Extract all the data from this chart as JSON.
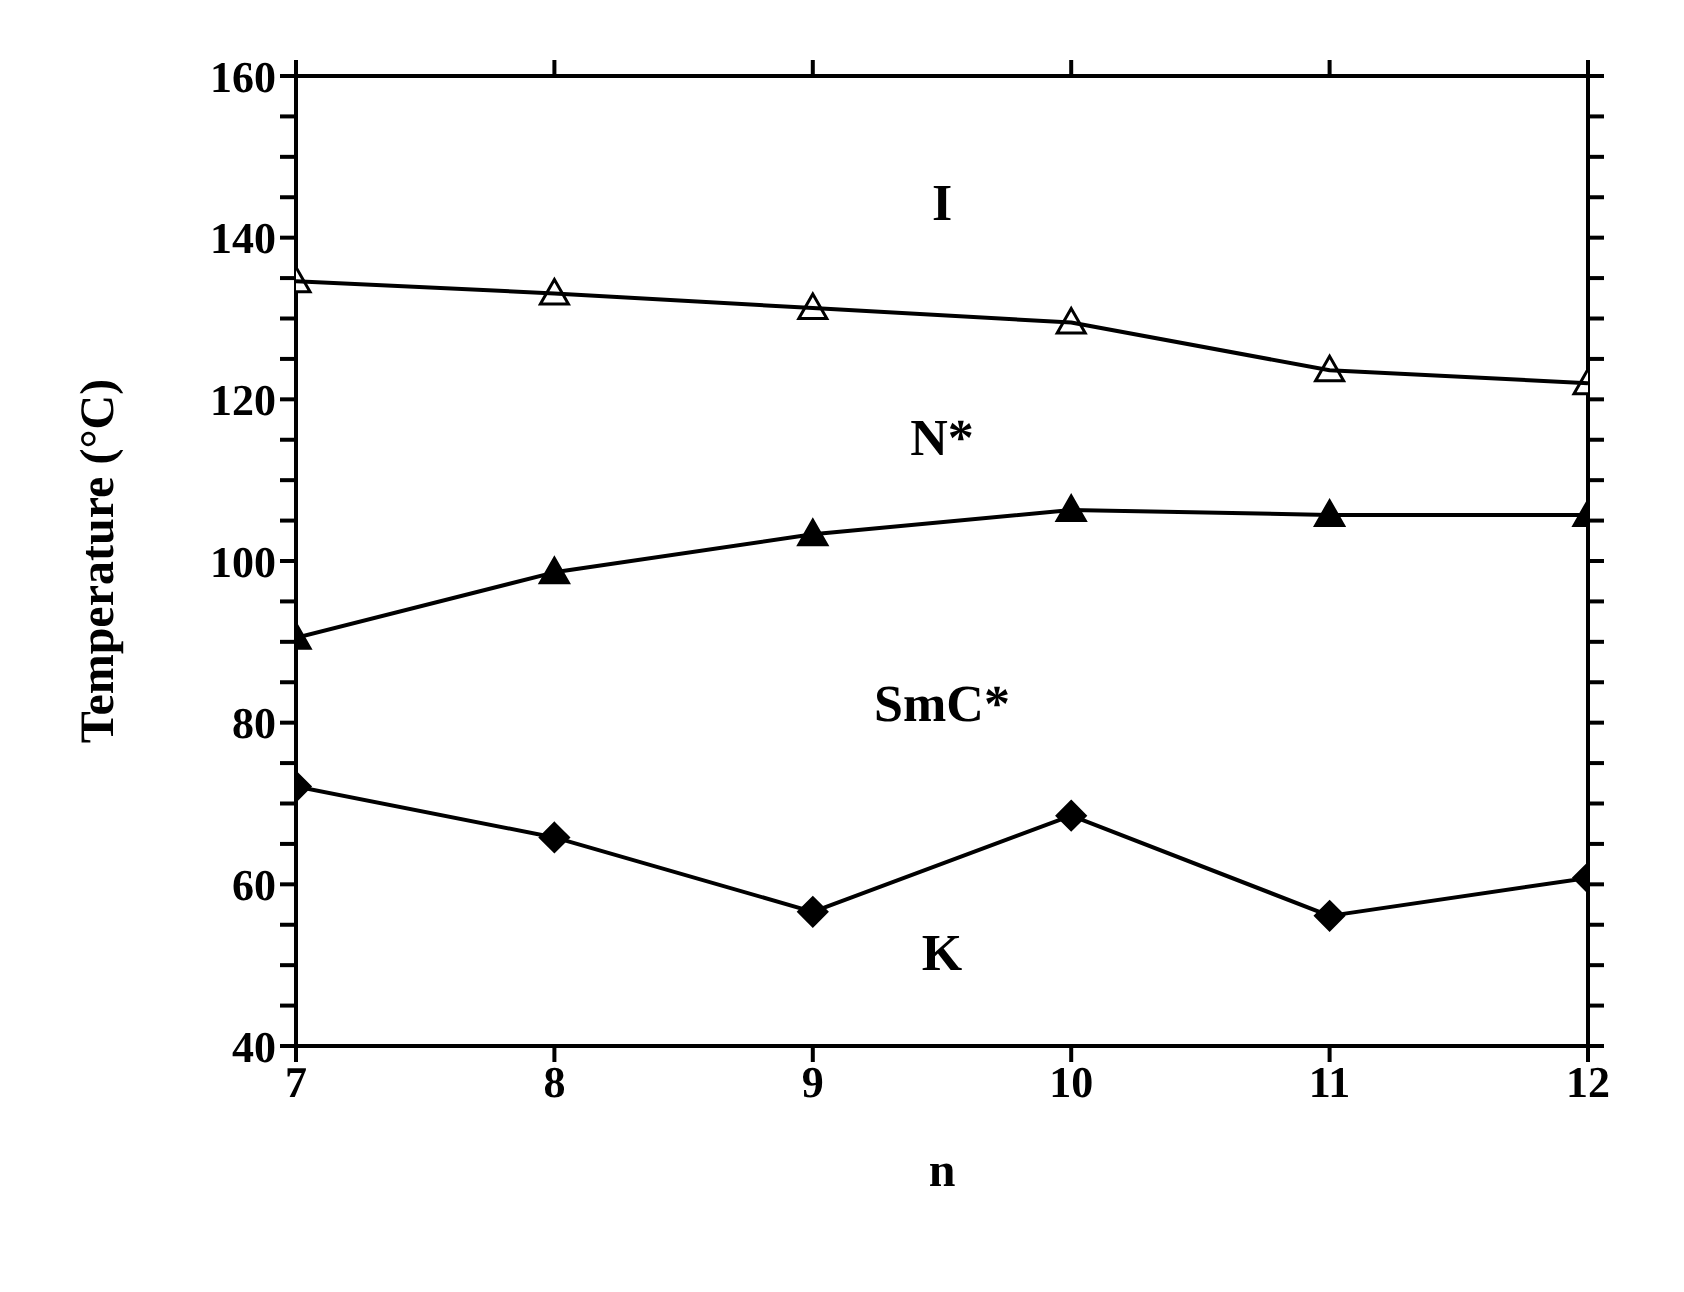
{
  "chart_data": {
    "type": "line",
    "xlabel": "n",
    "ylabel": "Temperature (°C)",
    "x": [
      7,
      8,
      9,
      10,
      11,
      12
    ],
    "series": [
      {
        "color": "#000000",
        "marker": "triangle-open",
        "values": [
          134.6,
          133.1,
          131.3,
          129.5,
          123.6,
          122
        ]
      },
      {
        "color": "#000000",
        "marker": "triangle",
        "values": [
          90.5,
          98.6,
          103.3,
          106.3,
          105.7,
          105.7
        ]
      },
      {
        "color": "#000000",
        "marker": "diamond",
        "values": [
          72.1,
          65.8,
          56.6,
          68.5,
          56.1,
          60.8
        ]
      }
    ],
    "xlim": [
      7,
      12
    ],
    "xticks": [
      7,
      8,
      9,
      10,
      11,
      12
    ],
    "ylim": [
      40,
      160
    ],
    "yticks": [
      40,
      {
        "value": 45,
        "label": null
      },
      {
        "value": 50,
        "label": null
      },
      {
        "value": 55,
        "label": null
      },
      60,
      {
        "value": 65,
        "label": null
      },
      {
        "value": 70,
        "label": null
      },
      {
        "value": 75,
        "label": null
      },
      80,
      {
        "value": 85,
        "label": null
      },
      {
        "value": 90,
        "label": null
      },
      {
        "value": 95,
        "label": null
      },
      100,
      {
        "value": 105,
        "label": null
      },
      {
        "value": 110,
        "label": null
      },
      {
        "value": 115,
        "label": null
      },
      120,
      {
        "value": 125,
        "label": null
      },
      {
        "value": 130,
        "label": null
      },
      {
        "value": 135,
        "label": null
      },
      140,
      {
        "value": 145,
        "label": null
      },
      {
        "value": 150,
        "label": null
      },
      {
        "value": 155,
        "label": null
      },
      160
    ],
    "annotations": [
      "I",
      "N*",
      "SmC*",
      "K"
    ],
    "grid": false,
    "line_style": "solid"
  }
}
